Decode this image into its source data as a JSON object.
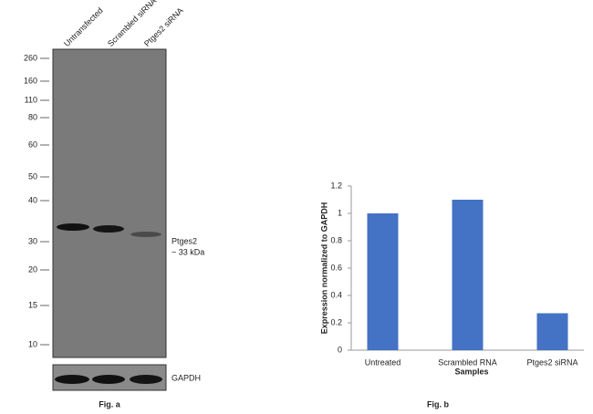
{
  "blot": {
    "lanes": [
      "Untransfected",
      "Scrambled siRNA",
      "Ptges2 siRNA"
    ],
    "markers": [
      260,
      160,
      110,
      80,
      60,
      50,
      40,
      30,
      20,
      15,
      10
    ],
    "band_name": "Ptges2",
    "band_size": "~ 33 kDa",
    "control": "GAPDH",
    "caption": "Fig. a"
  },
  "chart_data": {
    "type": "bar",
    "categories": [
      "Untreated",
      "Scrambled RNA",
      "Ptges2 siRNA"
    ],
    "values": [
      1,
      1.1,
      0.27
    ],
    "color": "#4472c4",
    "ylim": [
      0,
      1.2
    ],
    "yticks": [
      0,
      0.2,
      0.4,
      0.6,
      0.8,
      1,
      1.2
    ],
    "xlabel": "Samples",
    "ylabel": "Expression normalized to GAPDH",
    "caption": "Fig. b"
  }
}
